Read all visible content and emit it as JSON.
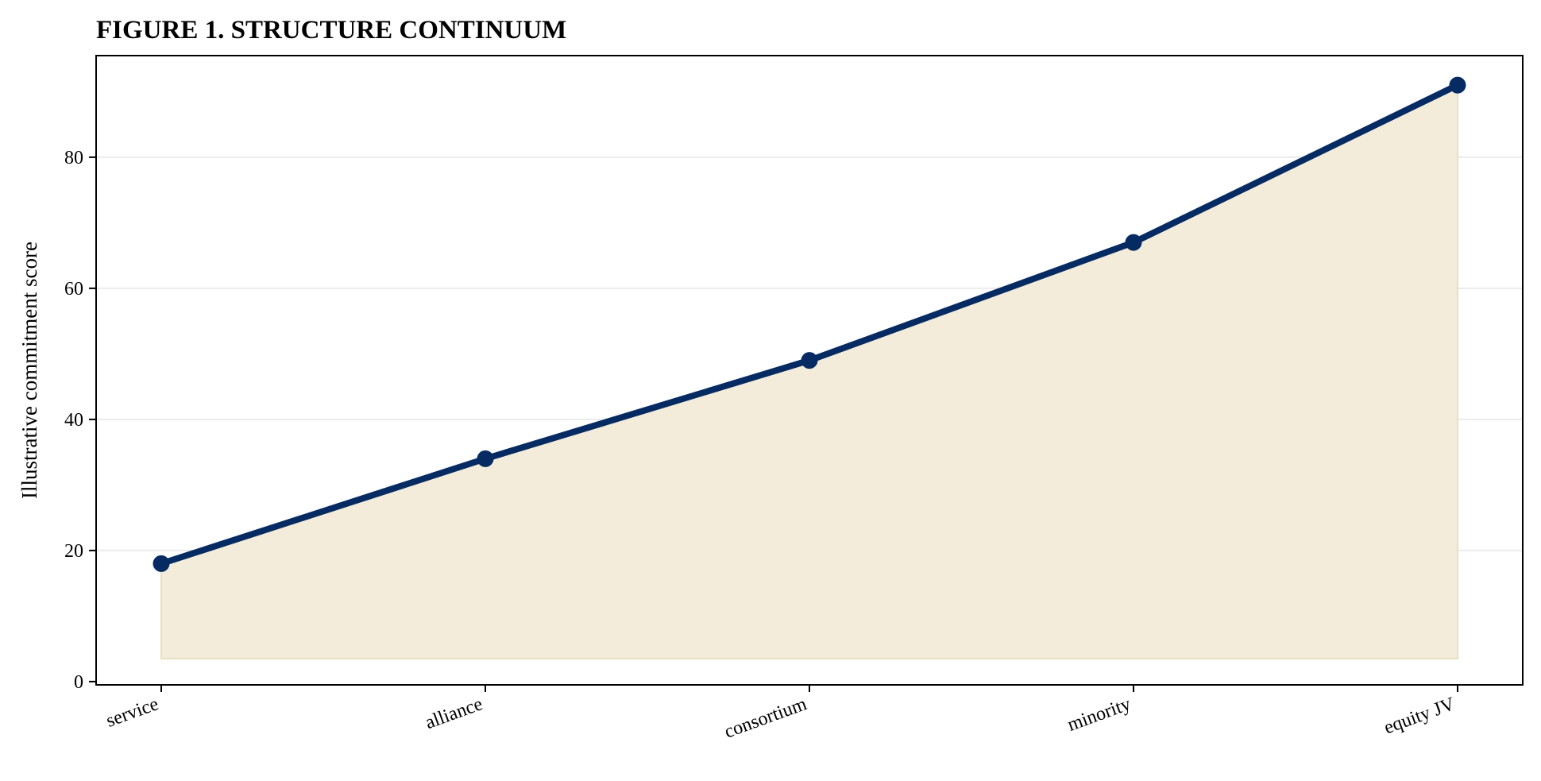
{
  "chart_data": {
    "type": "line",
    "title": "FIGURE 1. STRUCTURE CONTINUUM",
    "xlabel": "",
    "ylabel": "Illustrative commitment score",
    "categories": [
      "service",
      "alliance",
      "consortium",
      "minority",
      "equity JV"
    ],
    "series": [
      {
        "values": [
          18,
          34,
          49,
          67,
          91
        ]
      }
    ],
    "fill_baseline": 3.5,
    "ylim": [
      -0.5,
      95.5
    ],
    "yticks": [
      0,
      20,
      40,
      60,
      80
    ],
    "grid": "horizontal",
    "colors": {
      "line": "#062b63",
      "marker": "#062b63",
      "fill": "#f3ecdb",
      "fill_edge": "#ecdfc0",
      "grid": "#ececec"
    }
  }
}
